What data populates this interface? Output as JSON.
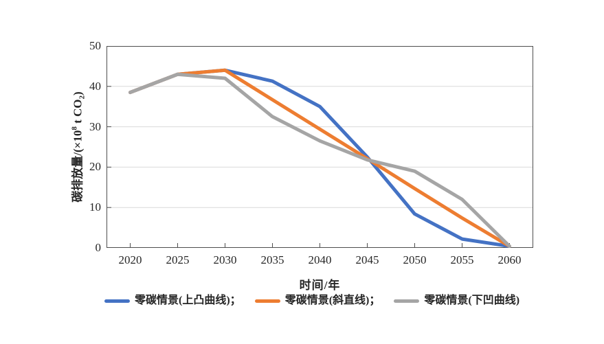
{
  "colors": {
    "background": "#ffffff",
    "axis": "#4d4d4d",
    "gridline": "#d9d9d9",
    "text": "#262626"
  },
  "chart_data": {
    "type": "line",
    "title": "",
    "xlabel": "时间/年",
    "ylabel": "碳排放量/(×10⁸ t CO₂)",
    "ylabel_parts": {
      "prefix": "碳排放量/(×10",
      "sup": "8",
      "mid": " t CO",
      "sub": "2",
      "suffix": ")"
    },
    "categories": [
      2020,
      2025,
      2030,
      2035,
      2040,
      2045,
      2050,
      2055,
      2060
    ],
    "x_tick_labels": [
      "2020",
      "2025",
      "2030",
      "2035",
      "2040",
      "2045",
      "2050",
      "2055",
      "2060"
    ],
    "y_ticks": [
      0,
      10,
      20,
      30,
      40,
      50
    ],
    "ylim": [
      0,
      50
    ],
    "grid": "horizontal",
    "legend_position": "bottom",
    "series": [
      {
        "name": "零碳情景(上凸曲线)",
        "legend_suffix": "；",
        "color": "#4472c4",
        "values": [
          38.5,
          43,
          44,
          41.3,
          35,
          22.5,
          8.4,
          2.2,
          0.4
        ]
      },
      {
        "name": "零碳情景(斜直线)",
        "legend_suffix": "；",
        "color": "#ed7d31",
        "values": [
          38.5,
          43,
          44,
          36.7,
          29.4,
          22.1,
          14.7,
          7.4,
          0.4
        ]
      },
      {
        "name": "零碳情景(下凹曲线)",
        "legend_suffix": "",
        "color": "#a5a5a5",
        "values": [
          38.5,
          43,
          42,
          32.5,
          26.5,
          21.8,
          19,
          12,
          0.4
        ]
      }
    ]
  }
}
